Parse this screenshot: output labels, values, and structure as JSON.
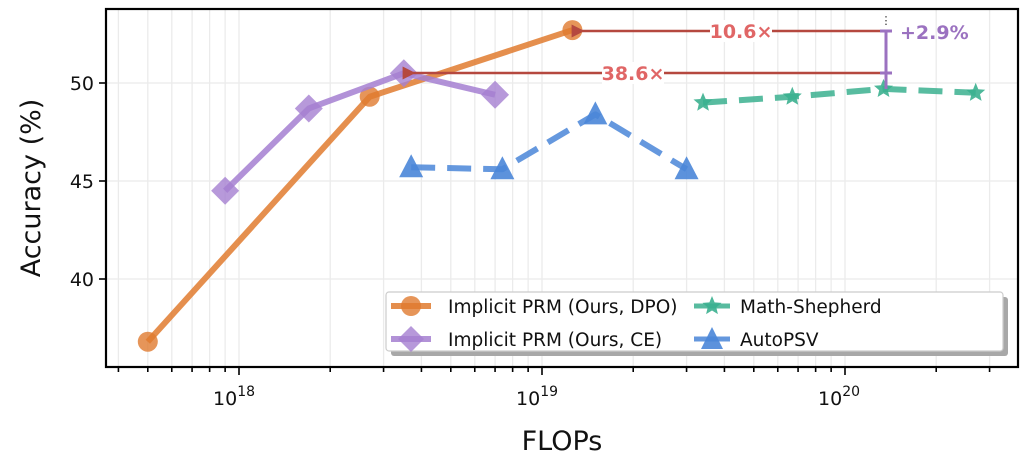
{
  "chart_data": {
    "type": "line",
    "title": "",
    "xlabel": "FLOPs",
    "ylabel": "Accuracy (%)",
    "xscale": "log",
    "xlim": [
      3.5e+17,
      4.3e+20
    ],
    "ylim": [
      36.0,
      53.8
    ],
    "x_ticks": [
      {
        "value": 1e+18,
        "base": "10",
        "exp": "18"
      },
      {
        "value": 1e+19,
        "base": "10",
        "exp": "19"
      },
      {
        "value": 1e+20,
        "base": "10",
        "exp": "20"
      }
    ],
    "y_ticks": [
      40,
      45,
      50
    ],
    "grid": true,
    "legend_position": "lower right",
    "series": [
      {
        "name": "Implicit PRM (Ours, DPO)",
        "color": "#e07b2f",
        "marker": "circle",
        "dash": false,
        "x": [
          5e+17,
          2.7e+18,
          1.26e+19
        ],
        "y": [
          36.8,
          49.3,
          52.7
        ]
      },
      {
        "name": "Implicit PRM (Ours, CE)",
        "color": "#a57fd1",
        "marker": "diamond",
        "dash": false,
        "x": [
          9e+17,
          1.7e+18,
          3.5e+18,
          7e+18
        ],
        "y": [
          44.5,
          48.7,
          50.5,
          49.4
        ]
      },
      {
        "name": "Math-Shepherd",
        "color": "#3bb08f",
        "marker": "star",
        "dash": true,
        "x": [
          3.4e+19,
          6.7e+19,
          1.34e+20,
          2.7e+20
        ],
        "y": [
          49.0,
          49.3,
          49.7,
          49.5
        ]
      },
      {
        "name": "AutoPSV",
        "color": "#4a86d8",
        "marker": "triangle",
        "dash": true,
        "x": [
          3.7e+18,
          7.4e+18,
          1.5e+19,
          3e+19
        ],
        "y": [
          45.7,
          45.6,
          48.4,
          45.6
        ]
      }
    ],
    "annotations": [
      {
        "text": "10.6×",
        "color": "#e06666",
        "type": "arrow",
        "from": [
          1.34e+20,
          52.7
        ],
        "to": [
          1.26e+19,
          52.7
        ]
      },
      {
        "text": "38.6×",
        "color": "#e06666",
        "type": "arrow",
        "from": [
          1.34e+20,
          50.5
        ],
        "to": [
          3.5e+18,
          50.5
        ]
      },
      {
        "text": "+2.9%",
        "color": "#9b72c0",
        "type": "bracket",
        "x": 1.34e+20,
        "y_from": 49.8,
        "y_to": 52.7
      }
    ]
  },
  "legend": {
    "items": [
      {
        "label": "Implicit PRM (Ours, DPO)"
      },
      {
        "label": "Implicit PRM (Ours, CE)"
      },
      {
        "label": "Math-Shepherd"
      },
      {
        "label": "AutoPSV"
      }
    ]
  },
  "axes": {
    "xlabel": "FLOPs",
    "ylabel": "Accuracy (%)",
    "y_tick_labels": [
      "40",
      "45",
      "50"
    ],
    "x_tick_bases": [
      "10",
      "10",
      "10"
    ],
    "x_tick_exps": [
      "18",
      "19",
      "20"
    ]
  },
  "annotation_labels": {
    "speedup_dpo": "10.6×",
    "speedup_ce": "38.6×",
    "gain": "+2.9%"
  }
}
